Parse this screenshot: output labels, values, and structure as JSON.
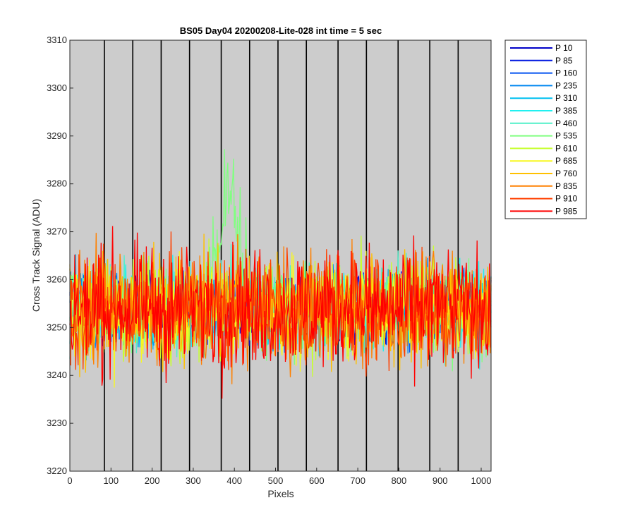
{
  "chart_data": {
    "type": "line",
    "title": "BS05 Day04 20200208-Lite-028 int time = 5 sec",
    "xlabel": "Pixels",
    "ylabel": "Cross Track Signal (ADU)",
    "xlim": [
      0,
      1024
    ],
    "ylim": [
      3220,
      3310
    ],
    "xticks": [
      0,
      100,
      200,
      300,
      400,
      500,
      600,
      700,
      800,
      900,
      1000
    ],
    "yticks": [
      3220,
      3230,
      3240,
      3250,
      3260,
      3270,
      3280,
      3290,
      3300,
      3310
    ],
    "vertical_lines_x": [
      84,
      153,
      222,
      291,
      368,
      437,
      506,
      575,
      652,
      721,
      798,
      875,
      944
    ],
    "plot_background": "#cccccc",
    "legend_position": "outside-top-right",
    "noise_center": 3254,
    "series": [
      {
        "name": "P 10",
        "color": "#0000c8"
      },
      {
        "name": "P 85",
        "color": "#0018e0"
      },
      {
        "name": "P 160",
        "color": "#0050f0"
      },
      {
        "name": "P 235",
        "color": "#0088f0"
      },
      {
        "name": "P 310",
        "color": "#00c0f0"
      },
      {
        "name": "P 385",
        "color": "#20f0f0"
      },
      {
        "name": "P 460",
        "color": "#50f0c8"
      },
      {
        "name": "P 535",
        "color": "#80ff80"
      },
      {
        "name": "P 610",
        "color": "#c8ff30"
      },
      {
        "name": "P 685",
        "color": "#f8f820"
      },
      {
        "name": "P 760",
        "color": "#ffc000"
      },
      {
        "name": "P 835",
        "color": "#ff8000"
      },
      {
        "name": "P 910",
        "color": "#ff4000"
      },
      {
        "name": "P 985",
        "color": "#ff0000"
      }
    ]
  }
}
